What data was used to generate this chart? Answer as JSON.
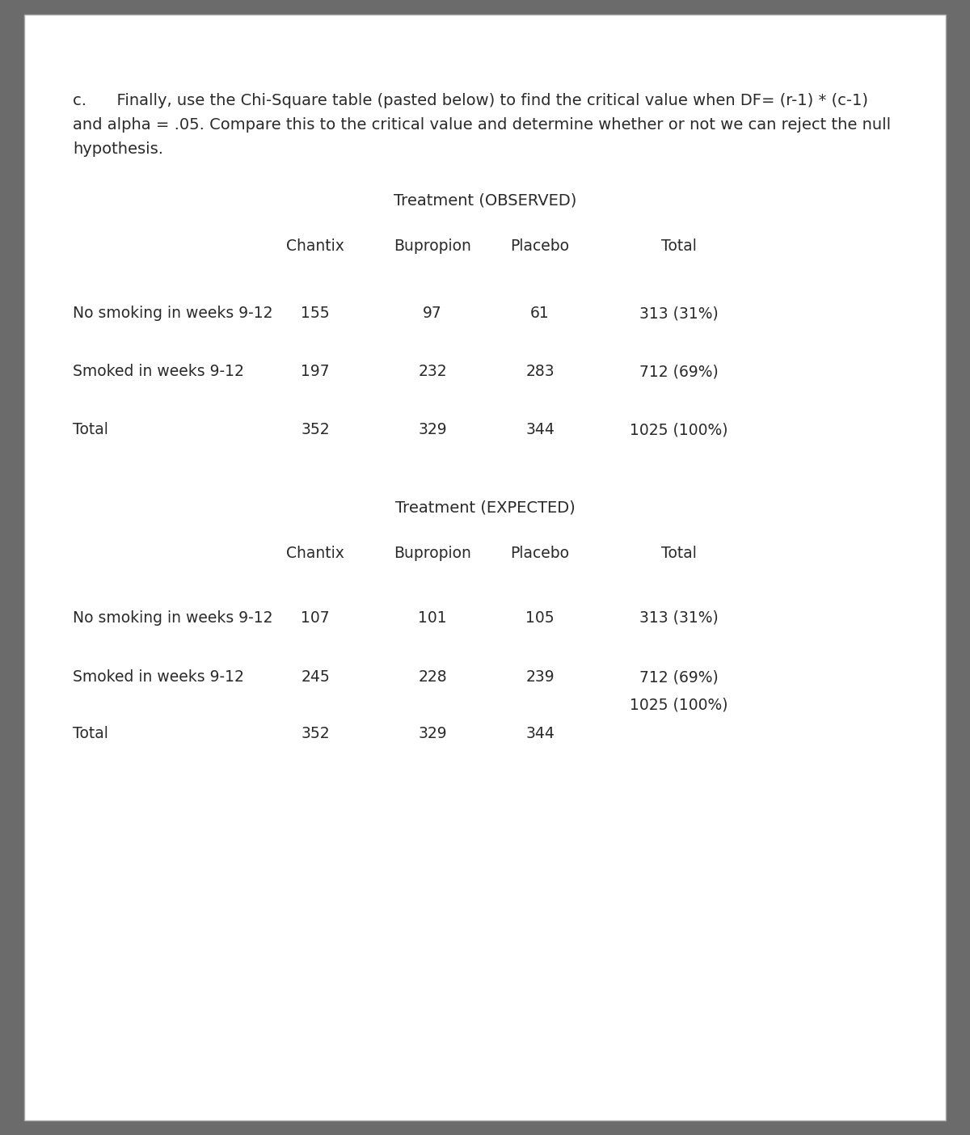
{
  "bg_color": "#6b6b6b",
  "page_bg": "#ffffff",
  "text_color": "#2a2a2a",
  "intro_text_line1": "c.      Finally, use the Chi-Square table (pasted below) to find the critical value when DF= (r-1) * (c-1)",
  "intro_text_line2": "and alpha = .05. Compare this to the critical value and determine whether or not we can reject the null",
  "intro_text_line3": "hypothesis.",
  "obs_title": "Treatment (OBSERVED)",
  "exp_title": "Treatment (EXPECTED)",
  "col_headers": [
    "Chantix",
    "Bupropion",
    "Placebo",
    "Total"
  ],
  "obs_rows": [
    [
      "No smoking in weeks 9-12",
      "155",
      "97",
      "61",
      "313 (31%)"
    ],
    [
      "Smoked in weeks 9-12",
      "197",
      "232",
      "283",
      "712 (69%)"
    ],
    [
      "Total",
      "352",
      "329",
      "344",
      "1025 (100%)"
    ]
  ],
  "exp_rows": [
    [
      "No smoking in weeks 9-12",
      "107",
      "101",
      "105",
      "313 (31%)"
    ],
    [
      "Smoked in weeks 9-12",
      "245",
      "228",
      "239",
      "712 (69%)"
    ],
    [
      "Total",
      "352",
      "329",
      "344",
      ""
    ]
  ],
  "exp_total_label": "1025 (100%)",
  "font_size_intro": 14,
  "font_size_title": 14,
  "font_size_header": 13.5,
  "font_size_data": 13.5
}
